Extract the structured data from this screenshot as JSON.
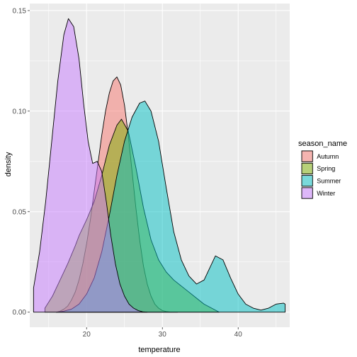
{
  "chart_data": {
    "type": "area",
    "title": "",
    "xlabel": "temperature",
    "ylabel": "density",
    "xlim": [
      12.5,
      46.8
    ],
    "ylim": [
      -0.0075,
      0.1535
    ],
    "xticks": [
      20,
      30,
      40
    ],
    "yticks": [
      0.0,
      0.05,
      0.1,
      0.15
    ],
    "ytick_labels": [
      "0.00",
      "0.05",
      "0.10",
      "0.15"
    ],
    "grid": true,
    "legend": {
      "title": "season_name",
      "position": "right"
    },
    "series": [
      {
        "name": "Autumn",
        "color": "#F8766D",
        "x": [
          16.0,
          16.5,
          17.0,
          17.5,
          18.0,
          18.5,
          19.0,
          19.5,
          20.0,
          20.5,
          21.0,
          21.5,
          22.0,
          22.5,
          23.0,
          23.5,
          24.0,
          24.5,
          25.0,
          25.5,
          26.0,
          26.5,
          27.0,
          27.5,
          28.0,
          28.5,
          29.0,
          29.5,
          30.0,
          30.5,
          31.0,
          31.5,
          32.0
        ],
        "values": [
          0.0,
          0.0005,
          0.0015,
          0.003,
          0.006,
          0.01,
          0.016,
          0.024,
          0.034,
          0.046,
          0.06,
          0.074,
          0.088,
          0.1,
          0.109,
          0.115,
          0.117,
          0.113,
          0.103,
          0.088,
          0.07,
          0.052,
          0.036,
          0.023,
          0.014,
          0.008,
          0.004,
          0.002,
          0.0008,
          0.0003,
          0.0001,
          0.0,
          0.0
        ]
      },
      {
        "name": "Spring",
        "color": "#7CAE00",
        "x": [
          14.5,
          15.5,
          16.5,
          17.5,
          18.5,
          19.0,
          20.0,
          21.0,
          22.0,
          23.0,
          24.0,
          24.6,
          25.5,
          26.5,
          27.5,
          28.5,
          29.5,
          30.5,
          31.5,
          32.5,
          33.5,
          34.5,
          35.5,
          36.5,
          37.5
        ],
        "values": [
          0.002,
          0.008,
          0.016,
          0.024,
          0.033,
          0.038,
          0.046,
          0.055,
          0.068,
          0.083,
          0.093,
          0.096,
          0.09,
          0.072,
          0.052,
          0.036,
          0.026,
          0.02,
          0.016,
          0.013,
          0.01,
          0.007,
          0.004,
          0.002,
          0.0
        ]
      },
      {
        "name": "Summer",
        "color": "#00BFC4",
        "x": [
          16.0,
          17.0,
          18.0,
          19.0,
          20.0,
          21.0,
          22.0,
          23.0,
          24.0,
          25.0,
          26.0,
          27.0,
          27.7,
          28.5,
          29.5,
          30.5,
          31.5,
          32.5,
          33.5,
          34.5,
          35.5,
          36.5,
          37.0,
          38.0,
          39.0,
          40.0,
          41.0,
          42.0,
          43.0,
          44.0,
          45.0,
          46.0,
          46.2
        ],
        "values": [
          0.0,
          0.0005,
          0.0015,
          0.004,
          0.009,
          0.017,
          0.03,
          0.048,
          0.068,
          0.085,
          0.097,
          0.104,
          0.105,
          0.1,
          0.085,
          0.062,
          0.04,
          0.026,
          0.018,
          0.014,
          0.016,
          0.024,
          0.028,
          0.026,
          0.017,
          0.009,
          0.004,
          0.002,
          0.001,
          0.002,
          0.004,
          0.0045,
          0.004
        ]
      },
      {
        "name": "Winter",
        "color": "#C77CFF",
        "x": [
          13.0,
          13.8,
          14.6,
          15.4,
          16.2,
          17.0,
          17.6,
          18.3,
          19.0,
          19.6,
          20.2,
          20.8,
          21.4,
          22.0,
          22.6,
          23.2,
          23.8,
          24.4,
          25.0,
          25.6,
          26.2,
          26.8,
          27.4,
          28.0
        ],
        "values": [
          0.012,
          0.03,
          0.055,
          0.085,
          0.115,
          0.138,
          0.146,
          0.142,
          0.126,
          0.104,
          0.085,
          0.074,
          0.075,
          0.07,
          0.055,
          0.038,
          0.024,
          0.014,
          0.008,
          0.004,
          0.002,
          0.0008,
          0.0002,
          0.0
        ]
      }
    ]
  }
}
